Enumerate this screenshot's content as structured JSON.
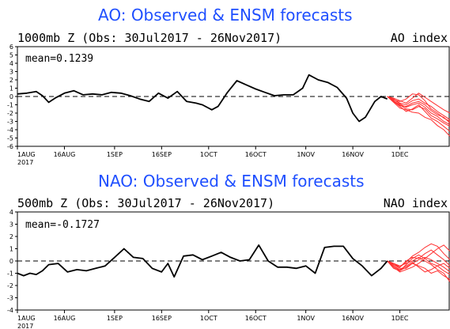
{
  "chart_data": [
    {
      "type": "line",
      "title": "AO: Observed & ENSM forecasts",
      "subtitle": "1000mb Z (Obs: 30Jul2017 - 26Nov2017)",
      "index_label": "AO index",
      "mean_label": "mean=0.1239",
      "ylim": [
        -6,
        6
      ],
      "yticks": [
        6,
        5,
        4,
        3,
        2,
        1,
        0,
        -1,
        -2,
        -3,
        -4,
        -5,
        -6
      ],
      "xlim_days": [
        0,
        138
      ],
      "xticks": [
        {
          "label": "1AUG",
          "year": "2017",
          "day": 0
        },
        {
          "label": "16AUG",
          "day": 15
        },
        {
          "label": "1SEP",
          "day": 31
        },
        {
          "label": "16SEP",
          "day": 46
        },
        {
          "label": "1OCT",
          "day": 61
        },
        {
          "label": "16OCT",
          "day": 76
        },
        {
          "label": "1NOV",
          "day": 92
        },
        {
          "label": "16NOV",
          "day": 107
        },
        {
          "label": "1DEC",
          "day": 122
        }
      ],
      "colors": {
        "observed": "#000000",
        "forecast": "#ff3030",
        "zero": "#000000"
      },
      "observed": {
        "x": [
          0,
          3,
          6,
          8,
          10,
          12,
          15,
          18,
          21,
          24,
          27,
          30,
          33,
          36,
          39,
          42,
          45,
          48,
          51,
          54,
          57,
          59,
          62,
          64,
          67,
          70,
          73,
          76,
          79,
          82,
          85,
          88,
          91,
          93,
          96,
          99,
          102,
          105,
          107,
          109,
          111,
          114,
          116,
          118
        ],
        "y": [
          0.3,
          0.4,
          0.6,
          0.1,
          -0.7,
          -0.2,
          0.4,
          0.7,
          0.2,
          0.3,
          0.2,
          0.5,
          0.4,
          0.1,
          -0.3,
          -0.6,
          0.4,
          -0.2,
          0.6,
          -0.6,
          -0.8,
          -1.0,
          -1.6,
          -1.2,
          0.5,
          1.9,
          1.4,
          0.9,
          0.5,
          0.1,
          0.2,
          0.2,
          1.0,
          2.6,
          2.0,
          1.7,
          1.1,
          -0.2,
          -2.0,
          -3.0,
          -2.5,
          -0.6,
          0.0,
          -0.3
        ]
      },
      "forecast": {
        "x": [
          118,
          120,
          122,
          124,
          126,
          128,
          130,
          132,
          134,
          136,
          138
        ],
        "members": [
          [
            0.0,
            -0.5,
            -1.0,
            -1.5,
            -1.6,
            -1.2,
            -1.5,
            -2.3,
            -2.7,
            -3.2,
            -3.6
          ],
          [
            0.0,
            -0.3,
            -0.8,
            -1.0,
            -0.5,
            -0.3,
            -0.8,
            -1.2,
            -1.8,
            -2.3,
            -2.8
          ],
          [
            0.0,
            -0.6,
            -1.2,
            -1.8,
            -1.5,
            -1.0,
            -1.8,
            -2.6,
            -3.0,
            -3.6,
            -4.2
          ],
          [
            0.0,
            -0.4,
            -0.6,
            -0.3,
            0.3,
            0.2,
            -0.5,
            -1.5,
            -2.0,
            -2.6,
            -3.0
          ],
          [
            0.0,
            -0.7,
            -1.4,
            -1.6,
            -1.9,
            -2.0,
            -2.5,
            -2.8,
            -3.5,
            -4.0,
            -4.8
          ],
          [
            0.0,
            -0.2,
            -0.5,
            -0.8,
            -0.2,
            0.4,
            -0.1,
            -0.6,
            -1.1,
            -1.6,
            -2.0
          ],
          [
            0.0,
            -0.5,
            -1.1,
            -1.2,
            -0.8,
            -0.6,
            -1.0,
            -1.7,
            -2.2,
            -2.5,
            -3.2
          ],
          [
            0.0,
            -0.3,
            -0.9,
            -1.3,
            -1.0,
            -0.8,
            -1.3,
            -2.0,
            -2.4,
            -3.0,
            -3.4
          ]
        ]
      }
    },
    {
      "type": "line",
      "title": "NAO: Observed & ENSM forecasts",
      "subtitle": "500mb Z (Obs: 30Jul2017 - 26Nov2017)",
      "index_label": "NAO index",
      "mean_label": "mean=-0.1727",
      "ylim": [
        -4,
        4
      ],
      "yticks": [
        4,
        3,
        2,
        1,
        0,
        -1,
        -2,
        -3,
        -4
      ],
      "xlim_days": [
        0,
        138
      ],
      "xticks": [
        {
          "label": "1AUG",
          "year": "2017",
          "day": 0
        },
        {
          "label": "16AUG",
          "day": 15
        },
        {
          "label": "1SEP",
          "day": 31
        },
        {
          "label": "16SEP",
          "day": 46
        },
        {
          "label": "1OCT",
          "day": 61
        },
        {
          "label": "16OCT",
          "day": 76
        },
        {
          "label": "1NOV",
          "day": 92
        },
        {
          "label": "16NOV",
          "day": 107
        },
        {
          "label": "1DEC",
          "day": 122
        }
      ],
      "colors": {
        "observed": "#000000",
        "forecast": "#ff3030",
        "zero": "#000000"
      },
      "observed": {
        "x": [
          0,
          2,
          4,
          6,
          8,
          10,
          13,
          16,
          19,
          22,
          25,
          28,
          31,
          34,
          37,
          40,
          43,
          46,
          48,
          50,
          53,
          56,
          59,
          62,
          65,
          68,
          71,
          74,
          77,
          80,
          83,
          86,
          89,
          92,
          95,
          98,
          101,
          104,
          107,
          110,
          113,
          116,
          118
        ],
        "y": [
          -1.0,
          -1.2,
          -1.0,
          -1.1,
          -0.8,
          -0.3,
          -0.2,
          -0.9,
          -0.7,
          -0.8,
          -0.6,
          -0.4,
          0.3,
          1.0,
          0.3,
          0.2,
          -0.6,
          -0.9,
          -0.2,
          -1.3,
          0.4,
          0.5,
          0.1,
          0.4,
          0.7,
          0.3,
          0.0,
          0.1,
          1.3,
          0.0,
          -0.5,
          -0.5,
          -0.6,
          -0.4,
          -1.0,
          1.1,
          1.2,
          1.2,
          0.2,
          -0.4,
          -1.2,
          -0.6,
          0.0
        ]
      },
      "forecast": {
        "x": [
          118,
          120,
          122,
          124,
          126,
          128,
          130,
          132,
          134,
          136,
          138
        ],
        "members": [
          [
            0.0,
            -0.4,
            -0.8,
            -0.5,
            -0.2,
            -0.4,
            -0.6,
            -1.0,
            -0.8,
            -1.2,
            -1.5
          ],
          [
            0.0,
            -0.3,
            -0.5,
            0.0,
            0.3,
            0.2,
            0.6,
            0.9,
            0.5,
            0.1,
            -0.4
          ],
          [
            0.0,
            -0.5,
            -0.9,
            -0.7,
            -0.5,
            -0.2,
            0.2,
            0.6,
            1.0,
            1.3,
            0.8
          ],
          [
            0.0,
            -0.2,
            -0.4,
            -0.2,
            0.0,
            0.3,
            0.0,
            -0.3,
            -0.7,
            -1.0,
            -1.7
          ],
          [
            0.0,
            -0.4,
            -0.7,
            -0.4,
            -0.1,
            -0.5,
            -0.9,
            -0.7,
            -0.4,
            -0.8,
            -1.1
          ],
          [
            0.0,
            -0.3,
            -0.6,
            -0.6,
            -0.2,
            0.1,
            0.3,
            0.1,
            -0.2,
            -0.5,
            -0.9
          ],
          [
            0.0,
            -0.6,
            -0.8,
            -0.3,
            0.2,
            0.5,
            0.2,
            -0.2,
            -0.4,
            -0.2,
            -0.6
          ],
          [
            0.0,
            -0.2,
            -0.5,
            -0.1,
            0.4,
            0.7,
            1.1,
            1.4,
            1.2,
            0.6,
            0.1
          ]
        ]
      }
    }
  ]
}
